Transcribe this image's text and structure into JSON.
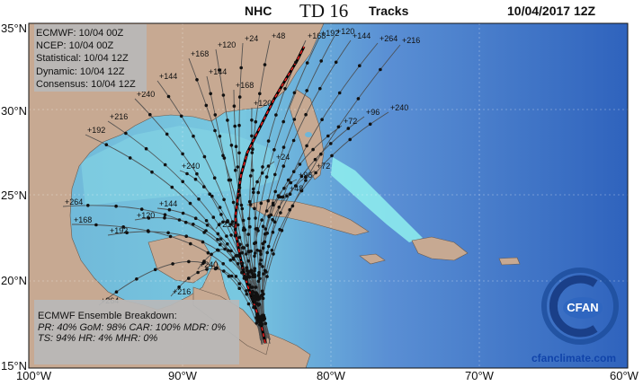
{
  "header": {
    "agency": "NHC",
    "storm": "TD 16",
    "product": "Tracks",
    "date": "10/04/2017 12Z"
  },
  "axes": {
    "lat_labels": [
      "35°N",
      "30°N",
      "25°N",
      "20°N",
      "15°N"
    ],
    "lon_labels": [
      "100°W",
      "90°W",
      "80°W",
      "70°W",
      "60°W"
    ]
  },
  "legend": {
    "lines": [
      "ECMWF: 10/04 00Z",
      "NCEP: 10/04 00Z",
      "Statistical: 10/04 12Z",
      "Dynamic: 10/04 12Z",
      "Consensus: 10/04 12Z"
    ]
  },
  "ensemble": {
    "title": "ECMWF Ensemble Breakdown:",
    "line1": "PR: 40% GoM: 98% CAR: 100% MDR: 0%",
    "line2": "TS: 94% HR: 4% MHR: 0%"
  },
  "hour_labels": [
    "+168",
    "+192",
    "+120",
    "+144",
    "+264",
    "+216",
    "+240",
    "+96",
    "+72",
    "+48",
    "+24",
    "+120",
    "+168",
    "+144",
    "+240",
    "+216",
    "+192",
    "+264"
  ],
  "site": "cfanclimate.com",
  "colors": {
    "land": "#c7a992",
    "ocean_deep": "#2a5db8",
    "ocean_mid": "#78a8de",
    "ocean_shallow": "#7fe3e3",
    "track": "#4a4a4a",
    "track_point": "#111111",
    "consensus": "#000000",
    "consensus_highlight": "#ff2222",
    "legend_box": "#b8b8b8"
  }
}
